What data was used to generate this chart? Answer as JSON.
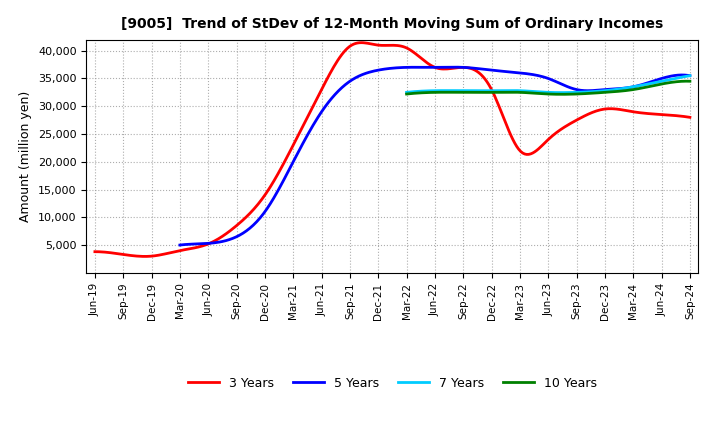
{
  "title": "[9005]  Trend of StDev of 12-Month Moving Sum of Ordinary Incomes",
  "ylabel": "Amount (million yen)",
  "ylim": [
    0,
    42000
  ],
  "yticks": [
    5000,
    10000,
    15000,
    20000,
    25000,
    30000,
    35000,
    40000
  ],
  "background_color": "#ffffff",
  "grid_color": "#999999",
  "x_labels": [
    "Jun-19",
    "Sep-19",
    "Dec-19",
    "Mar-20",
    "Jun-20",
    "Sep-20",
    "Dec-20",
    "Mar-21",
    "Jun-21",
    "Sep-21",
    "Dec-21",
    "Mar-22",
    "Jun-22",
    "Sep-22",
    "Dec-22",
    "Mar-23",
    "Jun-23",
    "Sep-23",
    "Dec-23",
    "Mar-24",
    "Jun-24",
    "Sep-24"
  ],
  "series": {
    "3 Years": {
      "color": "#ff0000",
      "data_x": [
        0,
        1,
        2,
        3,
        4,
        5,
        6,
        7,
        8,
        9,
        10,
        11,
        12,
        13,
        14,
        15,
        16,
        17,
        18,
        19,
        20,
        21
      ],
      "data_y": [
        3800,
        3300,
        3000,
        4000,
        5200,
        8500,
        14000,
        23000,
        33000,
        40800,
        41000,
        40500,
        37000,
        37000,
        33000,
        22000,
        24000,
        27500,
        29500,
        29000,
        28500,
        28000
      ]
    },
    "5 Years": {
      "color": "#0000ff",
      "data_x": [
        3,
        4,
        5,
        6,
        7,
        8,
        9,
        10,
        11,
        12,
        13,
        14,
        15,
        16,
        17,
        18,
        19,
        20,
        21
      ],
      "data_y": [
        5000,
        5300,
        6500,
        11000,
        20000,
        29000,
        34500,
        36500,
        37000,
        37000,
        37000,
        36500,
        36000,
        35000,
        33000,
        33000,
        33500,
        35000,
        35500
      ]
    },
    "7 Years": {
      "color": "#00ccff",
      "data_x": [
        11,
        12,
        13,
        14,
        15,
        16,
        17,
        18,
        19,
        20,
        21
      ],
      "data_y": [
        32500,
        32800,
        32800,
        32800,
        32800,
        32500,
        32500,
        32800,
        33500,
        34500,
        35500
      ]
    },
    "10 Years": {
      "color": "#008000",
      "data_x": [
        11,
        12,
        13,
        14,
        15,
        16,
        17,
        18,
        19,
        20,
        21
      ],
      "data_y": [
        32200,
        32500,
        32500,
        32500,
        32500,
        32200,
        32200,
        32500,
        33000,
        34000,
        34500
      ]
    }
  },
  "legend": {
    "entries": [
      "3 Years",
      "5 Years",
      "7 Years",
      "10 Years"
    ],
    "colors": [
      "#ff0000",
      "#0000ff",
      "#00ccff",
      "#008000"
    ]
  }
}
